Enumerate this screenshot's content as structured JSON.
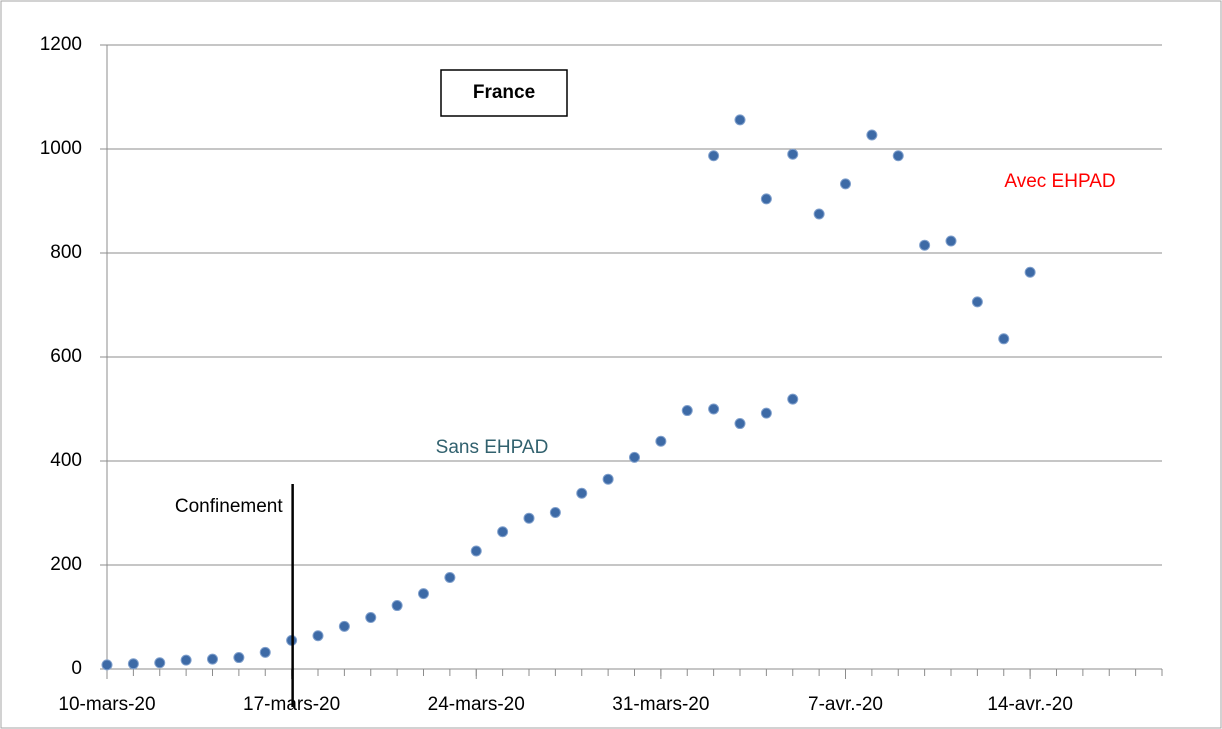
{
  "chart_data": {
    "type": "scatter",
    "title": "France",
    "xlim": [
      "2020-03-10",
      "2020-04-19"
    ],
    "xticks": [
      {
        "value": "2020-03-10",
        "label": "10-mars-20"
      },
      {
        "value": "2020-03-17",
        "label": "17-mars-20"
      },
      {
        "value": "2020-03-24",
        "label": "24-mars-20"
      },
      {
        "value": "2020-03-31",
        "label": "31-mars-20"
      },
      {
        "value": "2020-04-07",
        "label": "7-avr.-20"
      },
      {
        "value": "2020-04-14",
        "label": "14-avr.-20"
      }
    ],
    "ylim": [
      0,
      1200
    ],
    "yticks": [
      0,
      200,
      400,
      600,
      800,
      1000,
      1200
    ],
    "grid": true,
    "series": [
      {
        "name": "Sans EHPAD",
        "color": "#3d6aa6",
        "label_color": "#31616e",
        "x": [
          "2020-03-10",
          "2020-03-11",
          "2020-03-12",
          "2020-03-13",
          "2020-03-14",
          "2020-03-15",
          "2020-03-16",
          "2020-03-17",
          "2020-03-18",
          "2020-03-19",
          "2020-03-20",
          "2020-03-21",
          "2020-03-22",
          "2020-03-23",
          "2020-03-24",
          "2020-03-25",
          "2020-03-26",
          "2020-03-27",
          "2020-03-28",
          "2020-03-29",
          "2020-03-30",
          "2020-03-31",
          "2020-04-01",
          "2020-04-02",
          "2020-04-03",
          "2020-04-04",
          "2020-04-05"
        ],
        "values": [
          8,
          10,
          12,
          17,
          19,
          22,
          32,
          55,
          64,
          82,
          99,
          122,
          145,
          176,
          227,
          264,
          290,
          301,
          338,
          365,
          407,
          438,
          497,
          500,
          472,
          492,
          519
        ]
      },
      {
        "name": "Avec EHPAD",
        "color": "#3d6aa6",
        "label_color": "#ff0000",
        "x": [
          "2020-04-02",
          "2020-04-03",
          "2020-04-04",
          "2020-04-05",
          "2020-04-06",
          "2020-04-07",
          "2020-04-08",
          "2020-04-09",
          "2020-04-10",
          "2020-04-11",
          "2020-04-12",
          "2020-04-13",
          "2020-04-14"
        ],
        "values": [
          987,
          1056,
          904,
          990,
          875,
          933,
          1027,
          987,
          815,
          823,
          706,
          635,
          763
        ]
      }
    ],
    "annotations": [
      {
        "text": "Confinement",
        "x": "2020-03-17"
      }
    ]
  }
}
